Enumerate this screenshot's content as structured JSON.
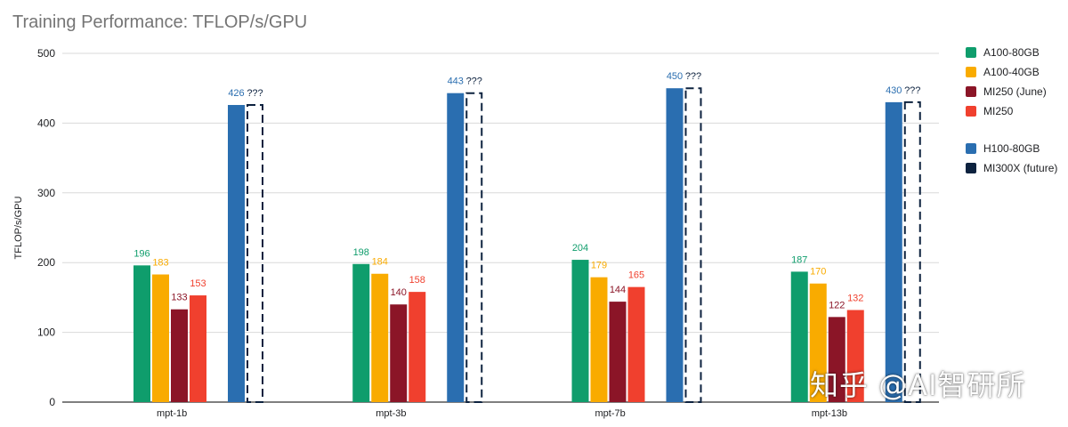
{
  "chart_data": {
    "type": "bar",
    "title": "Training Performance: TFLOP/s/GPU",
    "xlabel": "",
    "ylabel": "TFLOP/s/GPU",
    "ylim": [
      0,
      500
    ],
    "yticks": [
      "0",
      "100",
      "200",
      "300",
      "400",
      "500"
    ],
    "grid": true,
    "legend_position": "right",
    "categories": [
      "mpt-1b",
      "mpt-3b",
      "mpt-7b",
      "mpt-13b"
    ],
    "series": [
      {
        "name": "A100-80GB",
        "color": "#0f9d6c",
        "values": [
          196,
          198,
          204,
          187
        ],
        "labels": [
          "196",
          "198",
          "204",
          "187"
        ]
      },
      {
        "name": "A100-40GB",
        "color": "#f9ab00",
        "values": [
          183,
          184,
          179,
          170
        ],
        "labels": [
          "183",
          "184",
          "179",
          "170"
        ]
      },
      {
        "name": "MI250 (June)",
        "color": "#8b1527",
        "values": [
          133,
          140,
          144,
          122
        ],
        "labels": [
          "133",
          "140",
          "144",
          "122"
        ]
      },
      {
        "name": "MI250",
        "color": "#f0402e",
        "values": [
          153,
          158,
          165,
          132
        ],
        "labels": [
          "153",
          "158",
          "165",
          "132"
        ]
      },
      {
        "name": "H100-80GB",
        "color": "#2a6eb0",
        "values": [
          426,
          443,
          450,
          430
        ],
        "labels": [
          "426",
          "443",
          "450",
          "430"
        ]
      },
      {
        "name": "MI300X (future)",
        "color": "#0d223f",
        "values": [
          426,
          443,
          450,
          430
        ],
        "labels": [
          "???",
          "???",
          "???",
          "???"
        ],
        "style": "dashed-outline"
      }
    ]
  },
  "watermark": "知乎 @AI智研所"
}
